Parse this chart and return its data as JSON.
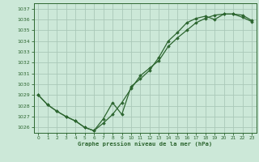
{
  "xlabel": "Graphe pression niveau de la mer (hPa)",
  "bg_color": "#cce8d8",
  "grid_color": "#aac8b8",
  "line_color": "#2d6630",
  "ylim": [
    1025.5,
    1037.5
  ],
  "xlim": [
    -0.5,
    23.5
  ],
  "yticks": [
    1026,
    1027,
    1028,
    1029,
    1030,
    1031,
    1032,
    1033,
    1034,
    1035,
    1036,
    1037
  ],
  "xticks": [
    0,
    1,
    2,
    3,
    4,
    5,
    6,
    7,
    8,
    9,
    10,
    11,
    12,
    13,
    14,
    15,
    16,
    17,
    18,
    19,
    20,
    21,
    22,
    23
  ],
  "line1_x": [
    0,
    1,
    2,
    3,
    4,
    5,
    6,
    7,
    8,
    9,
    10,
    11,
    12,
    13,
    14,
    15,
    16,
    17,
    18,
    19,
    20,
    21,
    22,
    23
  ],
  "line1_y": [
    1029.0,
    1028.1,
    1027.5,
    1027.0,
    1026.6,
    1026.0,
    1025.7,
    1026.4,
    1027.2,
    1028.3,
    1029.6,
    1030.8,
    1031.5,
    1032.2,
    1033.5,
    1034.3,
    1035.0,
    1035.7,
    1036.1,
    1036.4,
    1036.5,
    1036.5,
    1036.2,
    1035.8
  ],
  "line2_x": [
    0,
    1,
    2,
    3,
    4,
    5,
    6,
    7,
    8,
    9,
    10,
    11,
    12,
    13,
    14,
    15,
    16,
    17,
    18,
    19,
    20,
    21,
    22,
    23
  ],
  "line2_y": [
    1029.0,
    1028.1,
    1027.5,
    1027.0,
    1026.6,
    1026.0,
    1025.7,
    1026.8,
    1028.3,
    1027.2,
    1029.8,
    1030.5,
    1031.3,
    1032.5,
    1034.0,
    1034.8,
    1035.7,
    1036.1,
    1036.3,
    1036.0,
    1036.5,
    1036.5,
    1036.4,
    1035.9
  ]
}
